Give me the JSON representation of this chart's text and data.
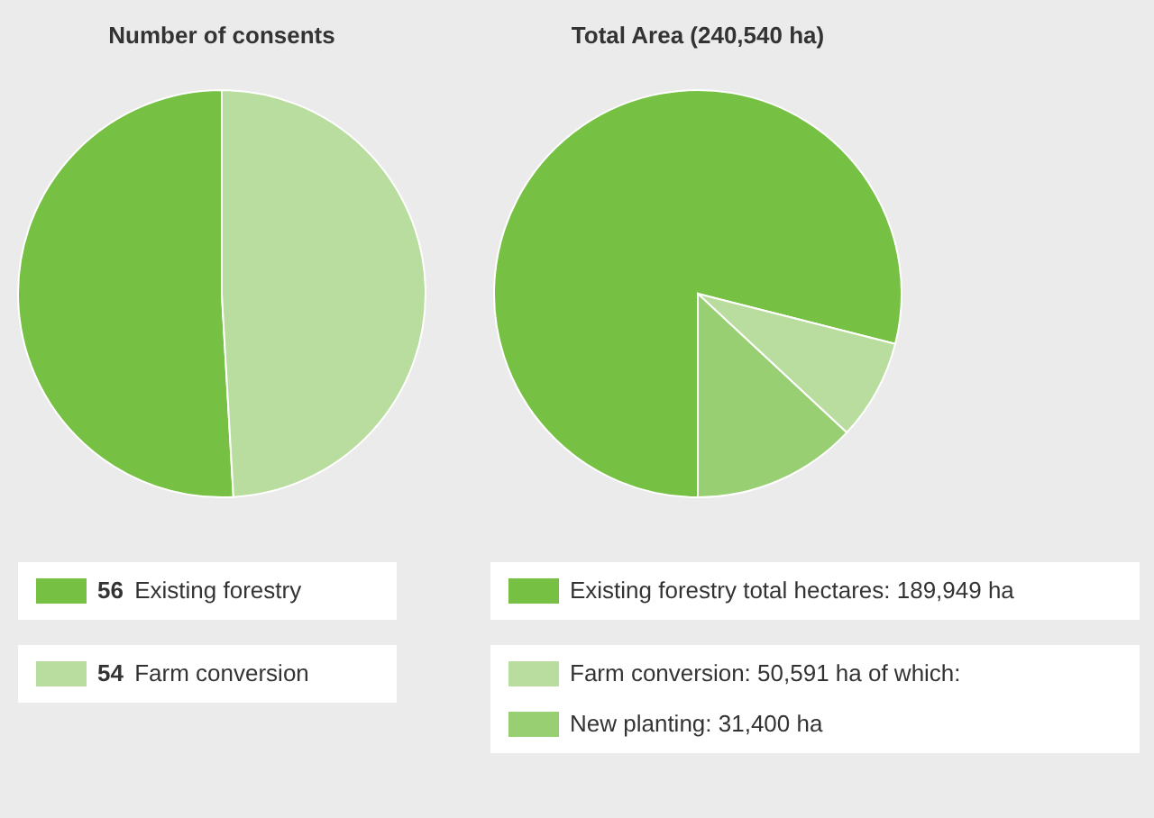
{
  "chart_data": [
    {
      "type": "pie",
      "title": "Number of consents",
      "categories": [
        "Existing forestry",
        "Farm conversion"
      ],
      "values": [
        56,
        54
      ],
      "colors": [
        "#76c043",
        "#b9dd9e"
      ],
      "data_labels": true,
      "legend": "bottom"
    },
    {
      "type": "pie",
      "title": "Total Area (240,540 ha)",
      "categories": [
        "Existing forestry total hectares",
        null,
        "New planting"
      ],
      "values": [
        189949,
        19191,
        31400
      ],
      "colors": [
        "#76c043",
        "#b9dd9e",
        "#98cf72"
      ],
      "value_labels": [
        "189,949 ha",
        null,
        "31,400 ha"
      ],
      "annotations": [
        "Farm conversion: 50,591 ha of which:"
      ],
      "legend": "bottom"
    }
  ]
}
